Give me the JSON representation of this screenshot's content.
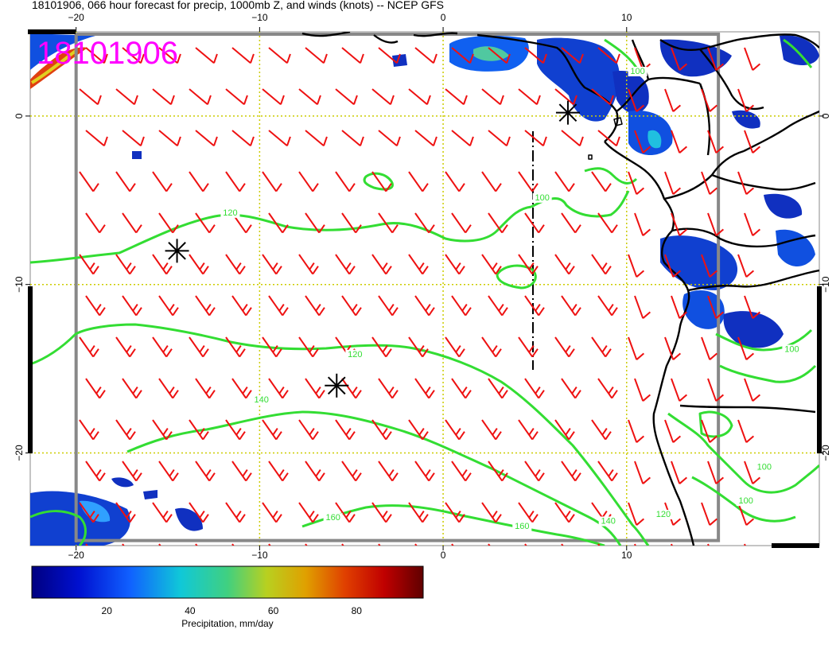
{
  "title": "18101906, 066 hour forecast for precip, 1000mb Z, and winds (knots) -- NCEP GFS",
  "stamp": "18101906",
  "map": {
    "lon_range": [
      -22.5,
      20.5
    ],
    "lat_range": [
      -25.5,
      5
    ],
    "x_ticks": [
      {
        "value": -20,
        "label": "−20"
      },
      {
        "value": -10,
        "label": "−10"
      },
      {
        "value": 0,
        "label": "0"
      },
      {
        "value": 10,
        "label": "10"
      }
    ],
    "y_ticks": [
      {
        "value": 0,
        "label": "0"
      },
      {
        "value": -10,
        "label": "−10"
      },
      {
        "value": -20,
        "label": "−20"
      }
    ],
    "grid": true,
    "contour_color": "#33dd33",
    "barb_color": "#ee1111",
    "coast_color": "#000000",
    "grid_color": "#cccc00",
    "contour_labels": [
      {
        "text": "120",
        "lon": -11.6,
        "lat": -5.9
      },
      {
        "text": "100",
        "lon": 5.4,
        "lat": -5.0
      },
      {
        "text": "120",
        "lon": -4.8,
        "lat": -14.3
      },
      {
        "text": "140",
        "lon": -9.9,
        "lat": -17.0
      },
      {
        "text": "160",
        "lon": -6.0,
        "lat": -24.0
      },
      {
        "text": "160",
        "lon": 4.3,
        "lat": -24.5
      },
      {
        "text": "140",
        "lon": 9.0,
        "lat": -24.2
      },
      {
        "text": "120",
        "lon": 12.0,
        "lat": -23.8
      },
      {
        "text": "100",
        "lon": 19.0,
        "lat": -14.0
      },
      {
        "text": "100",
        "lon": 17.5,
        "lat": -21.0
      },
      {
        "text": "100",
        "lon": 16.5,
        "lat": -23.0
      },
      {
        "text": "100",
        "lon": 10.6,
        "lat": 2.5
      }
    ],
    "pressure_centers": [
      {
        "name": "center-1",
        "lon": -14.5,
        "lat": -8.0
      },
      {
        "name": "center-2",
        "lon": -5.8,
        "lat": -16.0
      },
      {
        "name": "center-3",
        "lon": 6.8,
        "lat": 0.2
      }
    ]
  },
  "colorbar": {
    "ticks": [
      {
        "value": 20,
        "label": "20"
      },
      {
        "value": 40,
        "label": "40"
      },
      {
        "value": 60,
        "label": "60"
      },
      {
        "value": 80,
        "label": "80"
      }
    ],
    "range": [
      2,
      96
    ],
    "label": "Precipitation, mm/day"
  }
}
